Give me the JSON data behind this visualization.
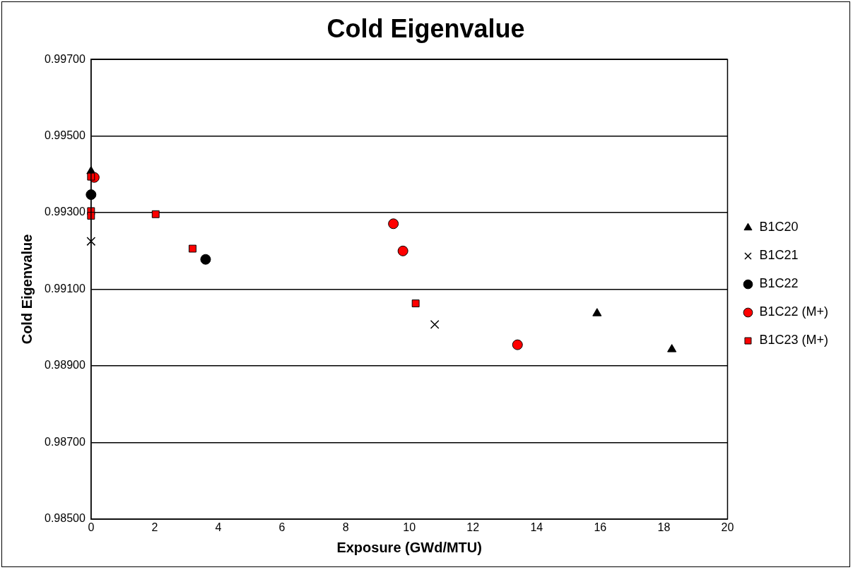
{
  "chart_data": {
    "type": "scatter",
    "title": "Cold Eigenvalue",
    "xlabel": "Exposure (GWd/MTU)",
    "ylabel": "Cold Eigenvalue",
    "xlim": [
      0,
      20
    ],
    "xticks": [
      0,
      2,
      4,
      6,
      8,
      10,
      12,
      14,
      16,
      18,
      20
    ],
    "ylim": [
      0.985,
      0.997
    ],
    "yticks": [
      {
        "value": 0.985,
        "label": "0.98500"
      },
      {
        "value": 0.987,
        "label": "0.98700"
      },
      {
        "value": 0.989,
        "label": "0.98900"
      },
      {
        "value": 0.991,
        "label": "0.99100"
      },
      {
        "value": 0.993,
        "label": "0.99300"
      },
      {
        "value": 0.995,
        "label": "0.99500"
      },
      {
        "value": 0.997,
        "label": "0.99700"
      }
    ],
    "grid": "y",
    "legend": "right",
    "series": [
      {
        "name": "B1C20",
        "color": "#000000",
        "marker": "triangle",
        "x": [
          0,
          15.9,
          18.25
        ],
        "values": [
          0.99408,
          0.99037,
          0.98943
        ]
      },
      {
        "name": "B1C21",
        "color": "#000000",
        "marker": "cross",
        "x": [
          0,
          10.8
        ],
        "values": [
          0.99225,
          0.99008
        ]
      },
      {
        "name": "B1C22",
        "color": "#000000",
        "marker": "circle",
        "x": [
          0,
          3.6
        ],
        "values": [
          0.99347,
          0.99178
        ]
      },
      {
        "name": "B1C22 (M+)",
        "color": "#ff0000",
        "marker": "circle",
        "x": [
          0.1,
          9.5,
          9.8,
          13.4
        ],
        "values": [
          0.99392,
          0.99271,
          0.992,
          0.98955
        ]
      },
      {
        "name": "B1C23 (M+)",
        "color": "#ff0000",
        "marker": "square",
        "x": [
          0,
          0,
          0,
          2.03,
          3.19,
          10.2
        ],
        "values": [
          0.99394,
          0.99304,
          0.99292,
          0.99296,
          0.99206,
          0.99063
        ]
      }
    ]
  }
}
